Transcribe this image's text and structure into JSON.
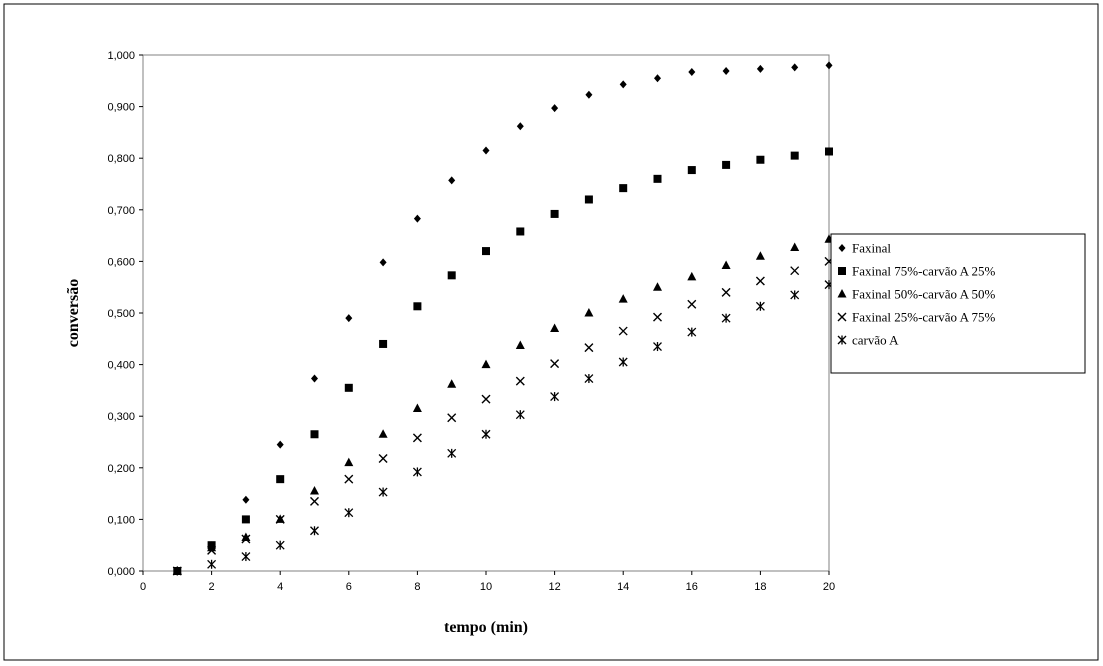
{
  "chart_data": {
    "type": "scatter",
    "title": "",
    "xlabel": "tempo (min)",
    "ylabel": "conversão",
    "xlim": [
      0,
      20
    ],
    "ylim": [
      0,
      1.0
    ],
    "x_ticks": [
      "0",
      "2",
      "4",
      "6",
      "8",
      "10",
      "12",
      "14",
      "16",
      "18",
      "20"
    ],
    "y_ticks": [
      "0,000",
      "0,100",
      "0,200",
      "0,300",
      "0,400",
      "0,500",
      "0,600",
      "0,700",
      "0,800",
      "0,900",
      "1,000"
    ],
    "grid": false,
    "legend_position": "right",
    "x": [
      1,
      2,
      3,
      4,
      5,
      6,
      7,
      8,
      9,
      10,
      11,
      12,
      13,
      14,
      15,
      16,
      17,
      18,
      19,
      20
    ],
    "series": [
      {
        "name": "Faxinal",
        "marker": "diamond",
        "values": [
          0.0,
          0.05,
          0.138,
          0.245,
          0.373,
          0.49,
          0.598,
          0.683,
          0.757,
          0.815,
          0.862,
          0.897,
          0.923,
          0.943,
          0.955,
          0.967,
          0.969,
          0.973,
          0.976,
          0.98
        ]
      },
      {
        "name": "Faxinal 75%-carvão A 25%",
        "marker": "square",
        "values": [
          0.0,
          0.05,
          0.1,
          0.178,
          0.265,
          0.355,
          0.44,
          0.513,
          0.573,
          0.62,
          0.658,
          0.692,
          0.72,
          0.742,
          0.76,
          0.777,
          0.787,
          0.797,
          0.805,
          0.813
        ]
      },
      {
        "name": "Faxinal 50%-carvão A 50%",
        "marker": "triangle",
        "values": [
          0.0,
          0.045,
          0.065,
          0.1,
          0.155,
          0.21,
          0.265,
          0.315,
          0.362,
          0.4,
          0.437,
          0.47,
          0.5,
          0.527,
          0.55,
          0.57,
          0.592,
          0.61,
          0.627,
          0.643
        ]
      },
      {
        "name": "Faxinal 25%-carvão A 75%",
        "marker": "x",
        "values": [
          0.0,
          0.04,
          0.062,
          0.1,
          0.135,
          0.178,
          0.218,
          0.258,
          0.297,
          0.333,
          0.368,
          0.402,
          0.433,
          0.465,
          0.492,
          0.517,
          0.54,
          0.562,
          0.582,
          0.6
        ]
      },
      {
        "name": "carvão A",
        "marker": "star",
        "values": [
          0.0,
          0.013,
          0.028,
          0.05,
          0.078,
          0.113,
          0.153,
          0.192,
          0.228,
          0.265,
          0.303,
          0.338,
          0.373,
          0.405,
          0.435,
          0.463,
          0.49,
          0.513,
          0.535,
          0.555
        ]
      }
    ]
  }
}
